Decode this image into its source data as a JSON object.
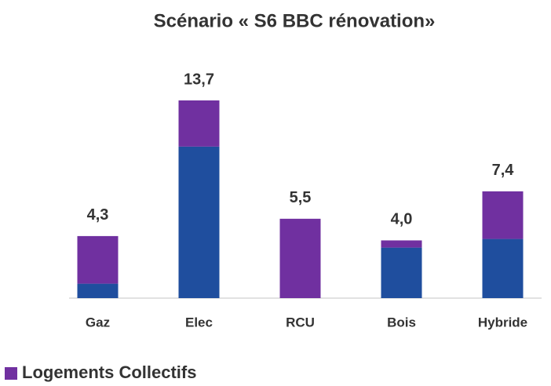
{
  "chart_data": {
    "type": "stacked_bar",
    "title": "Scénario « S6 BBC rénovation»",
    "categories": [
      "Gaz",
      "Elec",
      "RCU",
      "Bois",
      "Hybride"
    ],
    "series": [
      {
        "color": "#1f4e9e",
        "values": [
          1.0,
          10.5,
          0,
          3.5,
          4.1
        ]
      },
      {
        "name": "Logements Collectifs",
        "color": "#7030a0",
        "values": [
          3.3,
          3.2,
          5.5,
          0.5,
          3.3
        ]
      }
    ],
    "totals": [
      4.3,
      13.7,
      5.5,
      4.0,
      7.4
    ],
    "total_labels": [
      "4,3",
      "13,7",
      "5,5",
      "4,0",
      "7,4"
    ],
    "legend": "bottom-left"
  }
}
